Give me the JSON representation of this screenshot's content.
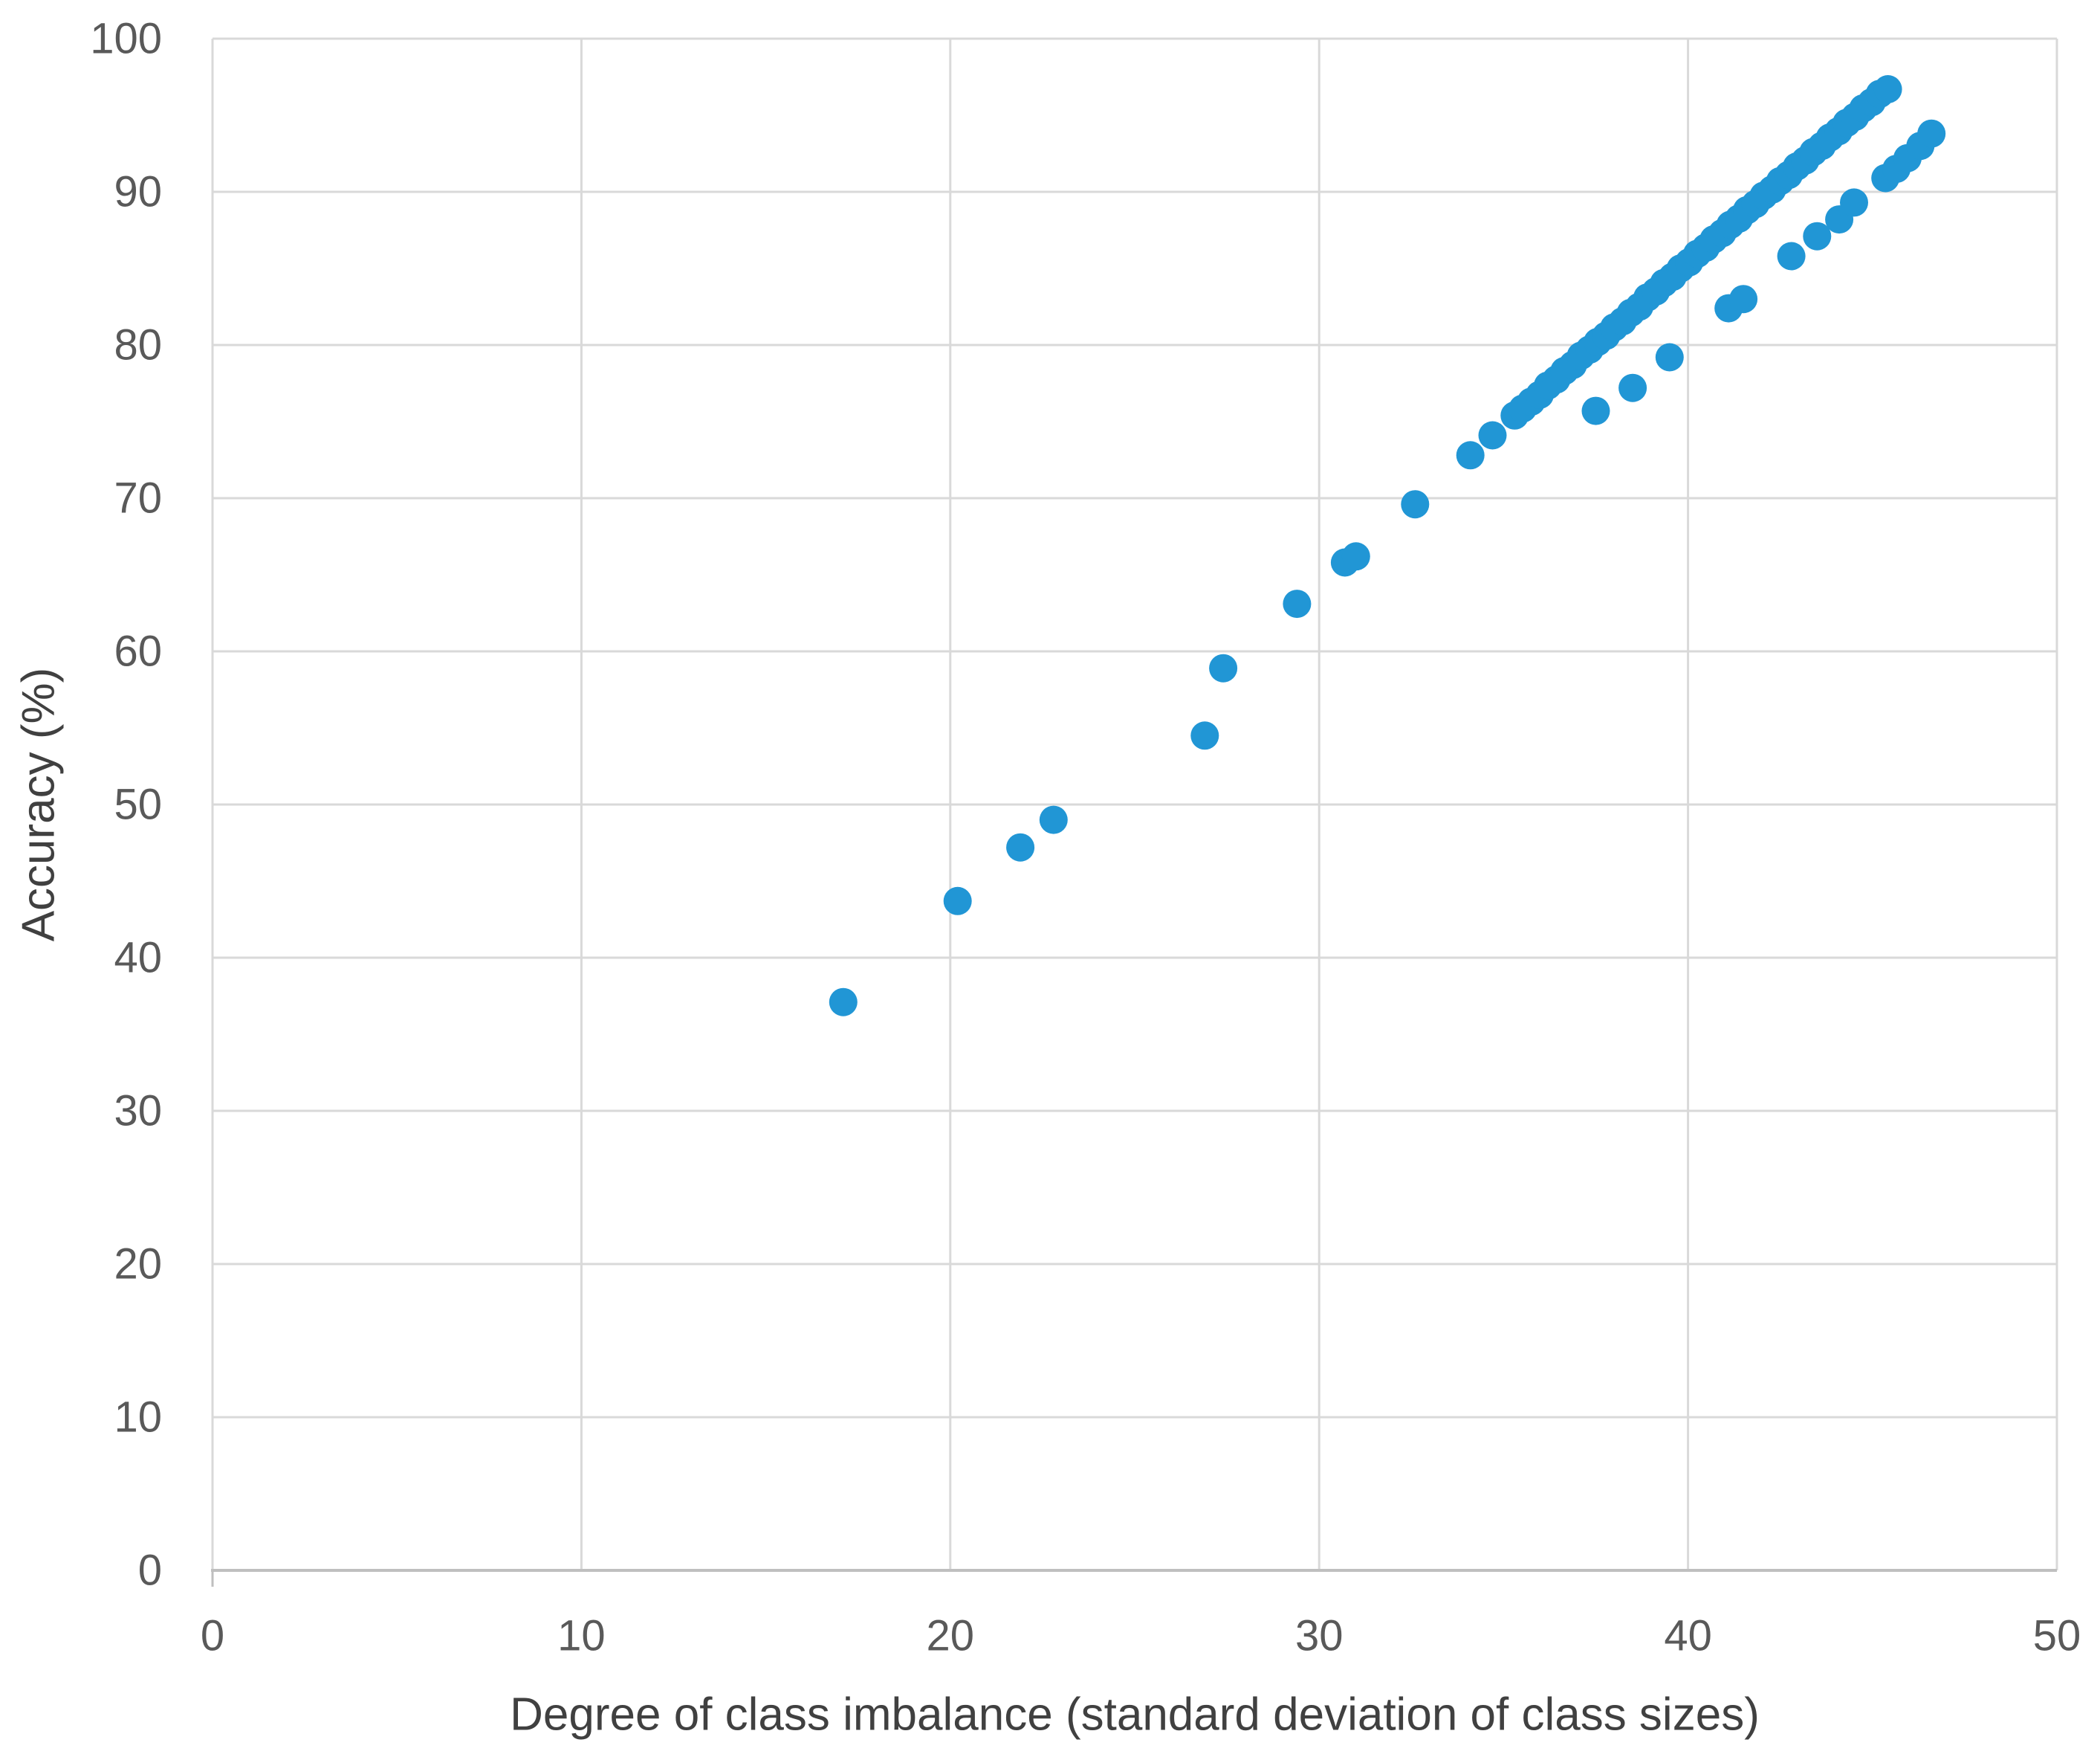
{
  "chart_data": {
    "type": "scatter",
    "title": "",
    "xlabel": "Degree of class imbalance (standard deviation of class sizes)",
    "ylabel": "Accuracy (%)",
    "xlim": [
      0,
      50
    ],
    "ylim": [
      0,
      100
    ],
    "x_ticks": [
      0,
      10,
      20,
      30,
      40,
      50
    ],
    "y_ticks": [
      0,
      10,
      20,
      30,
      40,
      50,
      60,
      70,
      80,
      90,
      100
    ],
    "grid": true,
    "legend": "none",
    "marker_diameter_px": 38,
    "colors": {
      "marker": "#2196D5",
      "gridline": "#D9D9D9",
      "axis_line": "#BFBFBF",
      "tick_label": "#595959",
      "axis_title": "#404040",
      "background": "#FFFFFF"
    },
    "series": [
      {
        "name": "accuracy-vs-imbalance-main",
        "points": [
          [
            17.1,
            37.1
          ],
          [
            20.2,
            43.7
          ],
          [
            21.9,
            47.2
          ],
          [
            22.8,
            49.0
          ],
          [
            26.9,
            54.5
          ],
          [
            27.4,
            58.9
          ],
          [
            29.4,
            63.1
          ],
          [
            30.7,
            65.8
          ],
          [
            31.0,
            66.2
          ],
          [
            32.6,
            69.6
          ],
          [
            34.1,
            72.8
          ],
          [
            34.7,
            74.1
          ],
          [
            35.3,
            75.4
          ],
          [
            35.52,
            75.85
          ],
          [
            35.75,
            76.3
          ],
          [
            35.98,
            76.75
          ],
          [
            36.2,
            77.35
          ],
          [
            36.43,
            77.75
          ],
          [
            36.65,
            78.3
          ],
          [
            36.88,
            78.7
          ],
          [
            37.1,
            79.3
          ],
          [
            37.33,
            79.7
          ],
          [
            37.55,
            80.2
          ],
          [
            37.78,
            80.6
          ],
          [
            38.0,
            81.15
          ],
          [
            38.23,
            81.55
          ],
          [
            38.45,
            82.1
          ],
          [
            38.68,
            82.5
          ],
          [
            38.9,
            83.1
          ],
          [
            39.13,
            83.5
          ],
          [
            39.35,
            84.05
          ],
          [
            39.58,
            84.45
          ],
          [
            39.8,
            85.0
          ],
          [
            40.03,
            85.4
          ],
          [
            40.25,
            85.95
          ],
          [
            40.48,
            86.35
          ],
          [
            40.7,
            86.9
          ],
          [
            40.93,
            87.3
          ],
          [
            41.15,
            87.85
          ],
          [
            41.38,
            88.25
          ],
          [
            41.6,
            88.8
          ],
          [
            41.83,
            89.2
          ],
          [
            42.05,
            89.75
          ],
          [
            42.28,
            90.15
          ],
          [
            42.5,
            90.7
          ],
          [
            42.73,
            91.1
          ],
          [
            42.95,
            91.65
          ],
          [
            43.18,
            92.05
          ],
          [
            43.4,
            92.6
          ],
          [
            43.63,
            93.0
          ],
          [
            43.85,
            93.55
          ],
          [
            44.08,
            93.95
          ],
          [
            44.3,
            94.5
          ],
          [
            44.53,
            94.9
          ],
          [
            44.75,
            95.45
          ],
          [
            44.98,
            95.85
          ],
          [
            45.2,
            96.4
          ],
          [
            45.42,
            96.7
          ]
        ]
      },
      {
        "name": "accuracy-vs-imbalance-offset",
        "points": [
          [
            37.5,
            75.7
          ],
          [
            38.5,
            77.2
          ],
          [
            39.5,
            79.2
          ],
          [
            41.1,
            82.4
          ],
          [
            41.5,
            83.0
          ],
          [
            42.8,
            85.8
          ],
          [
            43.5,
            87.1
          ],
          [
            44.1,
            88.2
          ],
          [
            44.5,
            89.3
          ],
          [
            45.35,
            90.9
          ],
          [
            45.65,
            91.5
          ],
          [
            45.95,
            92.2
          ],
          [
            46.3,
            93.0
          ],
          [
            46.6,
            93.8
          ]
        ]
      }
    ]
  }
}
